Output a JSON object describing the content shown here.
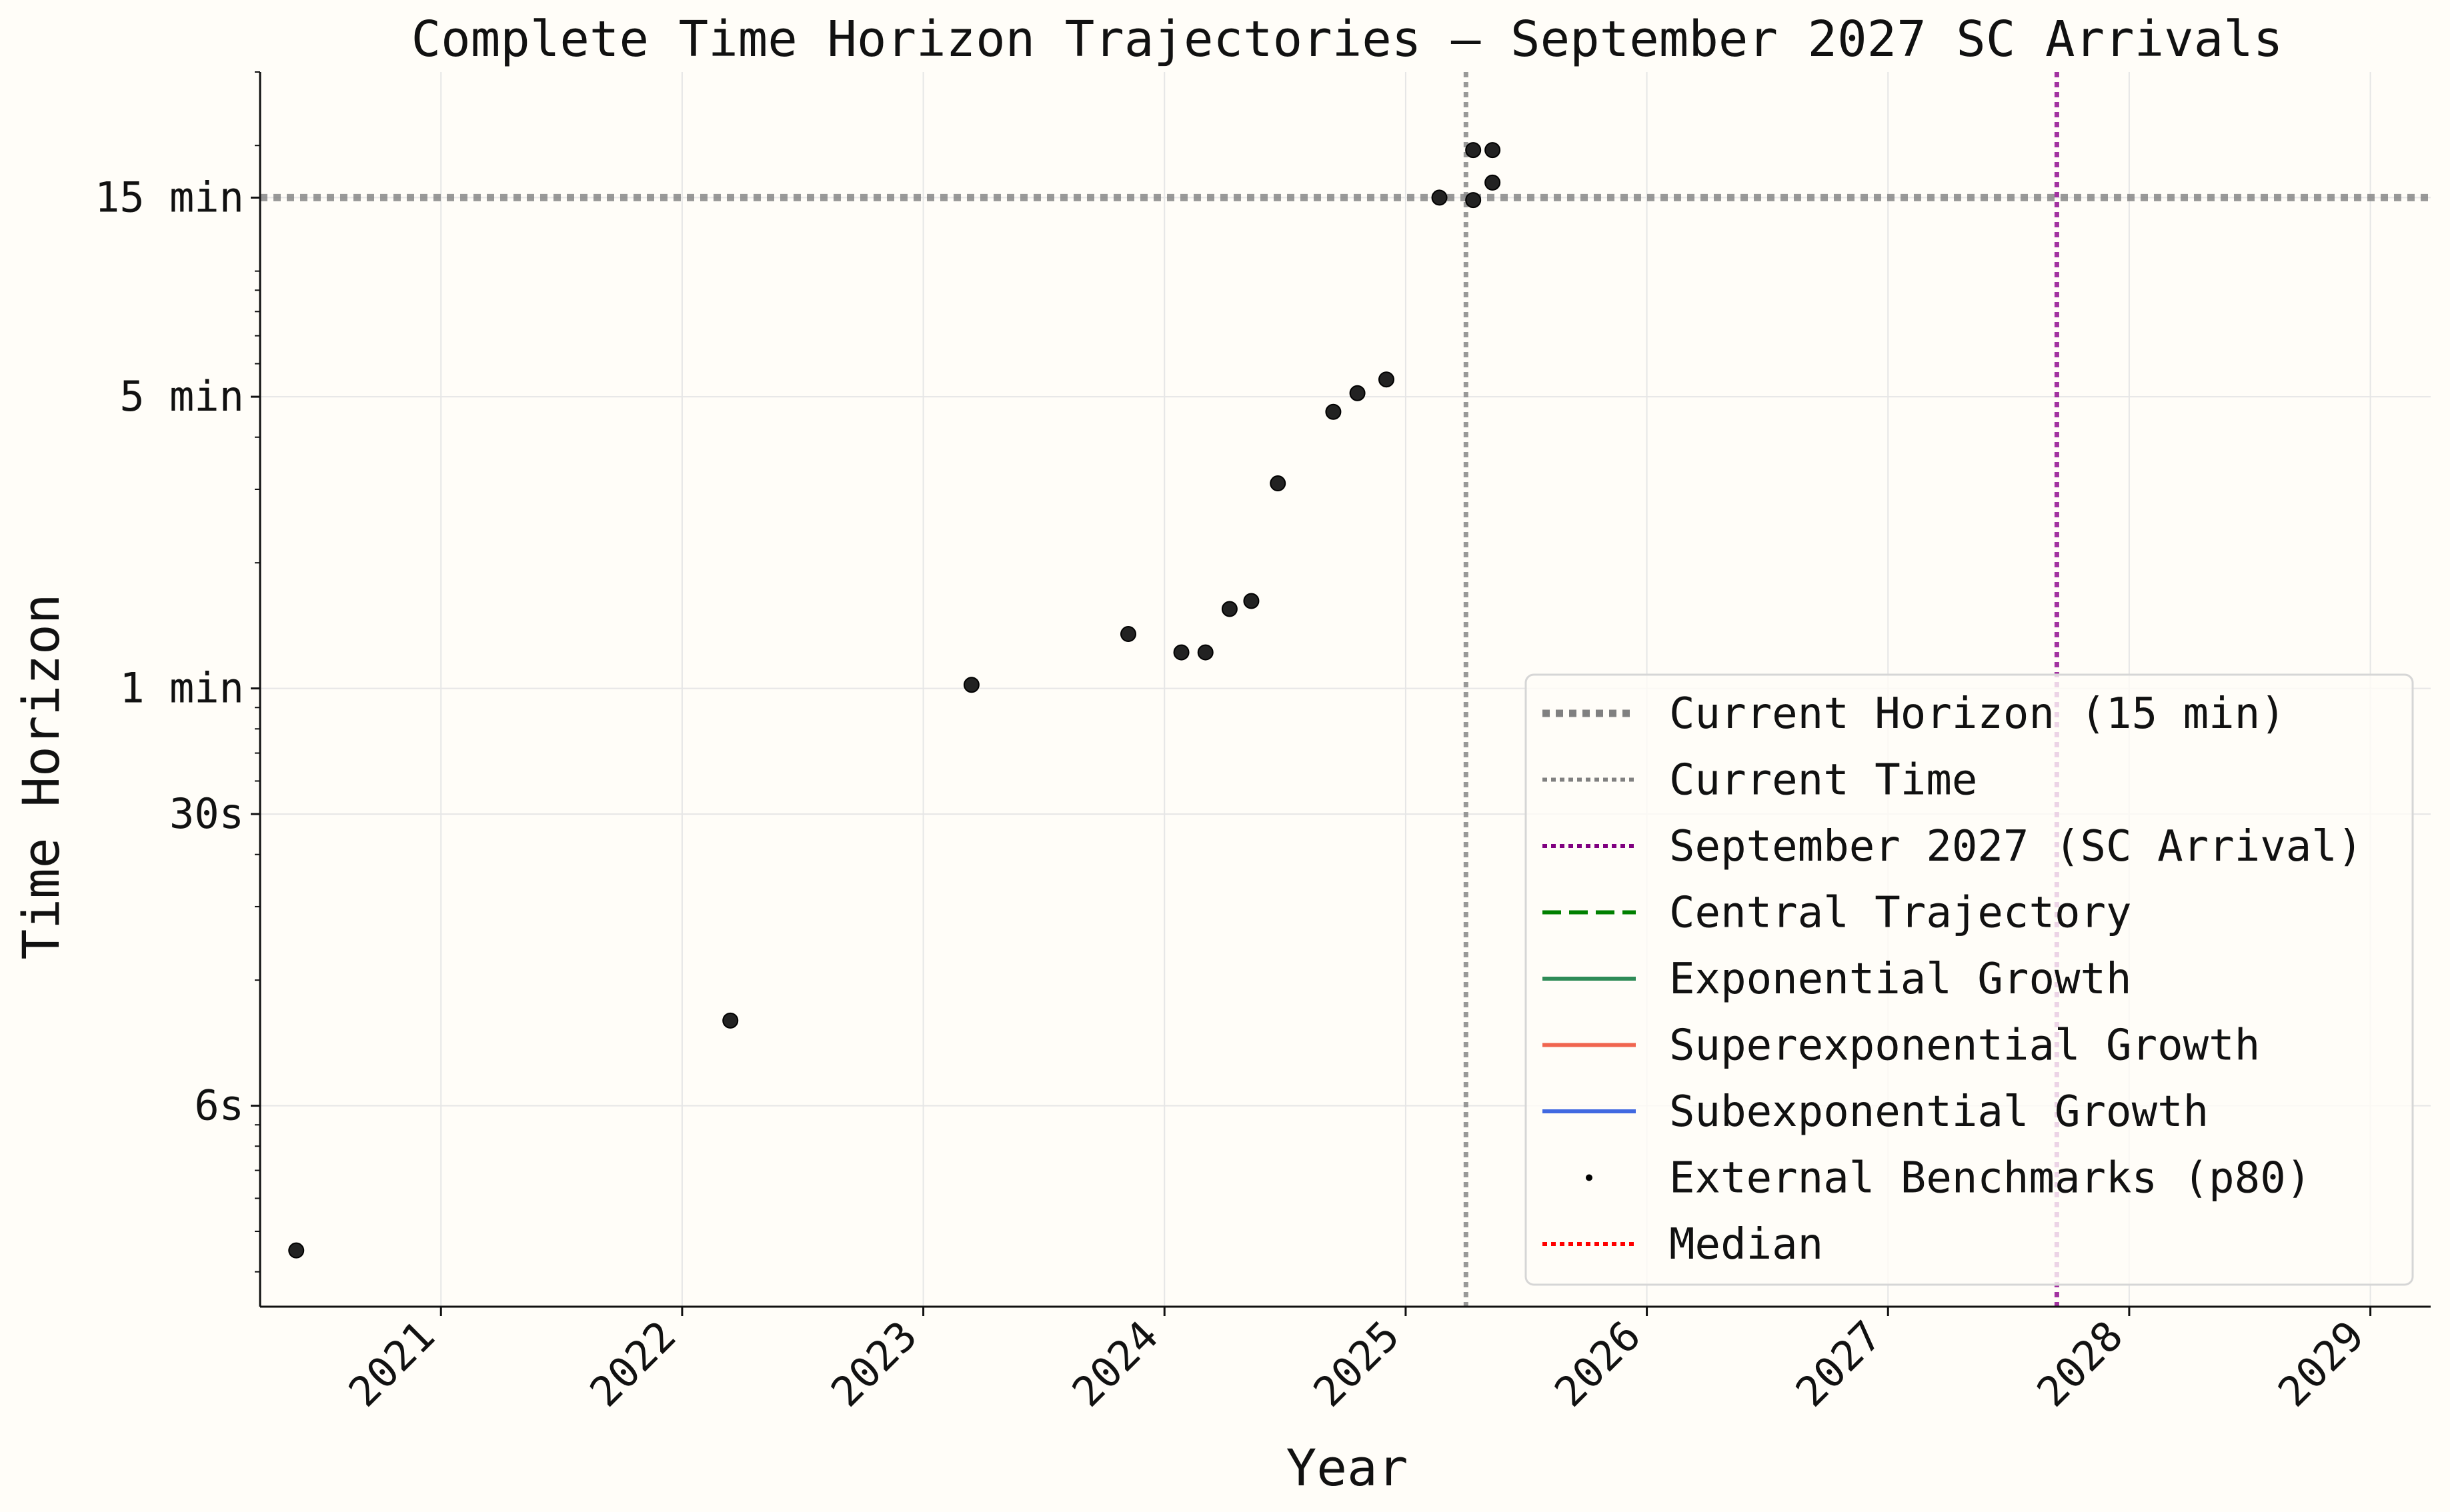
{
  "chart_data": {
    "type": "scatter",
    "title": "Complete Time Horizon Trajectories — September 2027 SC Arrivals",
    "xlabel": "Year",
    "ylabel": "Time Horizon",
    "x_scale": "linear (years)",
    "y_scale": "log",
    "xlim": [
      2020.25,
      2029.25
    ],
    "ylim_minutes": [
      0.033,
      30
    ],
    "x_ticks": [
      "2021",
      "2022",
      "2023",
      "2024",
      "2025",
      "2026",
      "2027",
      "2028",
      "2029"
    ],
    "y_ticks": [
      {
        "label": "6s",
        "minutes": 0.1
      },
      {
        "label": "30s",
        "minutes": 0.5
      },
      {
        "label": "1 min",
        "minutes": 1
      },
      {
        "label": "5 min",
        "minutes": 5
      },
      {
        "label": "15 min",
        "minutes": 15
      }
    ],
    "grid": true,
    "legend_position": "lower-right",
    "series": [
      {
        "name": "External Benchmarks (p80)",
        "color": "#222222",
        "points": [
          {
            "x": 2020.4,
            "y": 0.045
          },
          {
            "x": 2022.2,
            "y": 0.16
          },
          {
            "x": 2023.2,
            "y": 1.02
          },
          {
            "x": 2023.85,
            "y": 1.35
          },
          {
            "x": 2024.07,
            "y": 1.22
          },
          {
            "x": 2024.17,
            "y": 1.22
          },
          {
            "x": 2024.27,
            "y": 1.55
          },
          {
            "x": 2024.36,
            "y": 1.62
          },
          {
            "x": 2024.47,
            "y": 3.1
          },
          {
            "x": 2024.7,
            "y": 4.6
          },
          {
            "x": 2024.8,
            "y": 5.1
          },
          {
            "x": 2024.92,
            "y": 5.5
          },
          {
            "x": 2025.14,
            "y": 15.0
          },
          {
            "x": 2025.28,
            "y": 19.5
          },
          {
            "x": 2025.28,
            "y": 14.8
          },
          {
            "x": 2025.36,
            "y": 19.5
          },
          {
            "x": 2025.36,
            "y": 16.3
          }
        ]
      }
    ],
    "reference_lines": [
      {
        "name": "Current Horizon (15 min)",
        "orientation": "horizontal",
        "value_minutes": 15,
        "color": "#888888",
        "style": "dotted-thick"
      },
      {
        "name": "Current Time",
        "orientation": "vertical",
        "value_year": 2025.25,
        "color": "#888888",
        "style": "dotted"
      },
      {
        "name": "September 2027 (SC Arrival)",
        "orientation": "vertical",
        "value_year": 2027.7,
        "color": "#8B008B",
        "style": "dotted"
      }
    ],
    "legend": [
      {
        "label": "Current Horizon (15 min)",
        "color": "#808080",
        "style": "dotted-thick"
      },
      {
        "label": "Current Time",
        "color": "#808080",
        "style": "dotted"
      },
      {
        "label": "September 2027 (SC Arrival)",
        "color": "#800080",
        "style": "dotted"
      },
      {
        "label": "Central Trajectory",
        "color": "#008000",
        "style": "dashed"
      },
      {
        "label": "Exponential Growth",
        "color": "#2e8b57",
        "style": "solid"
      },
      {
        "label": "Superexponential Growth",
        "color": "#f0654f",
        "style": "solid"
      },
      {
        "label": "Subexponential Growth",
        "color": "#4169e1",
        "style": "solid"
      },
      {
        "label": "External Benchmarks (p80)",
        "color": "#000000",
        "style": "point"
      },
      {
        "label": "Median",
        "color": "#ff0000",
        "style": "dotted"
      }
    ]
  }
}
